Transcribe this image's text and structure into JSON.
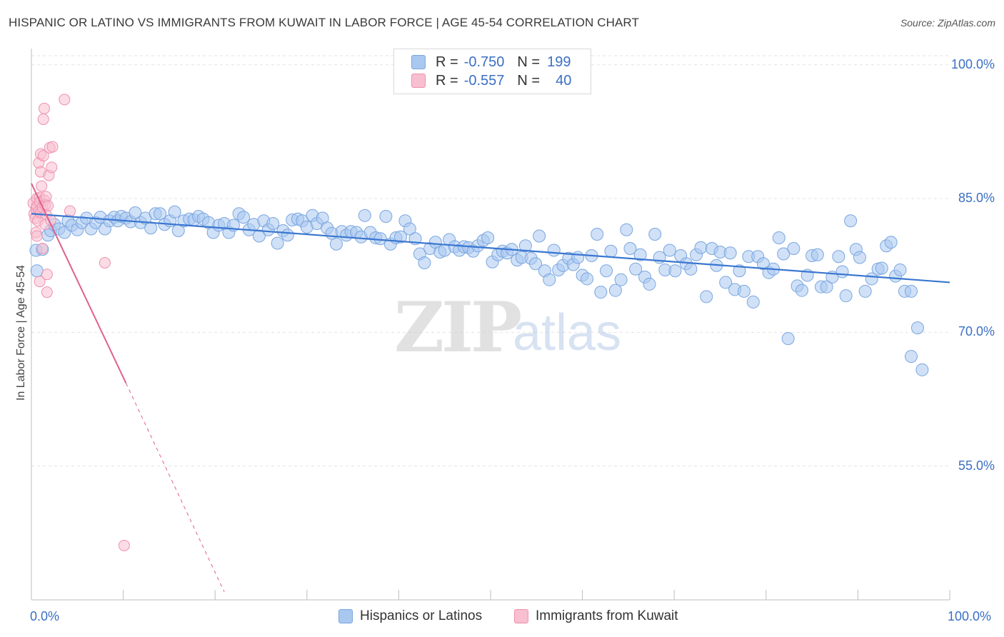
{
  "title": "HISPANIC OR LATINO VS IMMIGRANTS FROM KUWAIT IN LABOR FORCE | AGE 45-54 CORRELATION CHART",
  "source": "Source: ZipAtlas.com",
  "watermark": {
    "zip": "ZIP",
    "atlas": "atlas"
  },
  "legend_top": [
    {
      "r_label": "R =",
      "r_value": "-0.750",
      "n_label": "N =",
      "n_value": "199"
    },
    {
      "r_label": "R =",
      "r_value": "-0.557",
      "n_label": "N =",
      "n_value": "40"
    }
  ],
  "legend_bottom": [
    "Hispanics or Latinos",
    "Immigrants from Kuwait"
  ],
  "colors": {
    "blue_fill": "#a9c8f0",
    "blue_stroke": "#7aa6e0",
    "blue_line": "#3a76d0",
    "pink_fill": "#f7bfd0",
    "pink_stroke": "#ee90b0",
    "pink_line": "#e0608c",
    "grid": "#e3e3e3",
    "tick_text": "#3b6fc4"
  },
  "chart_data": {
    "type": "scatter",
    "title": "HISPANIC OR LATINO VS IMMIGRANTS FROM KUWAIT IN LABOR FORCE | AGE 45-54 CORRELATION CHART",
    "xlabel": "",
    "ylabel": "In Labor Force | Age 45-54",
    "xlim": [
      0,
      100
    ],
    "ylim": [
      40,
      101.5
    ],
    "x_tick_labels": [
      "0.0%",
      "100.0%"
    ],
    "y_ticks": [
      55,
      70,
      85,
      100
    ],
    "y_tick_labels": [
      "55.0%",
      "70.0%",
      "85.0%",
      "100.0%"
    ],
    "grid": true,
    "legend_position": "top-center",
    "series": [
      {
        "name": "Hispanics or Latinos",
        "r": -0.75,
        "n": 199,
        "trend": {
          "x": [
            0,
            100
          ],
          "y": [
            83.3,
            75.6
          ]
        },
        "points": [
          [
            0.5,
            79.2
          ],
          [
            0.6,
            76.9
          ],
          [
            1.2,
            79.3
          ],
          [
            1.8,
            80.9
          ],
          [
            2.1,
            81.4
          ],
          [
            2.5,
            82.1
          ],
          [
            3.0,
            81.6
          ],
          [
            3.6,
            81.2
          ],
          [
            4.0,
            82.5
          ],
          [
            4.4,
            82.0
          ],
          [
            5.0,
            81.5
          ],
          [
            5.5,
            82.3
          ],
          [
            6.0,
            82.8
          ],
          [
            6.5,
            81.6
          ],
          [
            7.0,
            82.3
          ],
          [
            7.5,
            82.9
          ],
          [
            8.0,
            81.6
          ],
          [
            8.5,
            82.5
          ],
          [
            9.0,
            82.9
          ],
          [
            9.4,
            82.5
          ],
          [
            9.8,
            83.0
          ],
          [
            10.3,
            82.8
          ],
          [
            10.8,
            82.4
          ],
          [
            11.3,
            83.4
          ],
          [
            11.9,
            82.3
          ],
          [
            12.4,
            82.8
          ],
          [
            13.0,
            81.7
          ],
          [
            13.5,
            83.3
          ],
          [
            14.0,
            83.3
          ],
          [
            14.5,
            82.1
          ],
          [
            15.1,
            82.5
          ],
          [
            15.6,
            83.5
          ],
          [
            16.0,
            81.4
          ],
          [
            16.6,
            82.5
          ],
          [
            17.2,
            82.7
          ],
          [
            17.7,
            82.6
          ],
          [
            18.2,
            83.0
          ],
          [
            18.7,
            82.7
          ],
          [
            19.3,
            82.3
          ],
          [
            19.8,
            81.2
          ],
          [
            20.4,
            82.0
          ],
          [
            21.0,
            82.2
          ],
          [
            21.5,
            81.2
          ],
          [
            22.0,
            82.0
          ],
          [
            22.6,
            83.3
          ],
          [
            23.1,
            82.9
          ],
          [
            23.7,
            81.5
          ],
          [
            24.2,
            82.1
          ],
          [
            24.8,
            80.8
          ],
          [
            25.3,
            82.5
          ],
          [
            25.8,
            81.5
          ],
          [
            26.3,
            82.2
          ],
          [
            26.8,
            80.0
          ],
          [
            27.4,
            81.4
          ],
          [
            27.9,
            80.9
          ],
          [
            28.4,
            82.6
          ],
          [
            29.0,
            82.7
          ],
          [
            29.5,
            82.5
          ],
          [
            30.0,
            81.8
          ],
          [
            30.6,
            83.1
          ],
          [
            31.1,
            82.2
          ],
          [
            31.7,
            82.8
          ],
          [
            32.2,
            81.7
          ],
          [
            32.7,
            81.1
          ],
          [
            33.2,
            79.9
          ],
          [
            33.8,
            81.3
          ],
          [
            34.3,
            80.9
          ],
          [
            34.8,
            81.3
          ],
          [
            35.4,
            81.2
          ],
          [
            35.9,
            80.7
          ],
          [
            36.3,
            83.1
          ],
          [
            36.9,
            81.2
          ],
          [
            37.5,
            80.6
          ],
          [
            38.0,
            80.5
          ],
          [
            38.6,
            83.0
          ],
          [
            39.1,
            79.9
          ],
          [
            39.7,
            80.6
          ],
          [
            40.2,
            80.7
          ],
          [
            40.7,
            82.5
          ],
          [
            41.2,
            81.6
          ],
          [
            41.8,
            80.5
          ],
          [
            42.3,
            78.8
          ],
          [
            42.8,
            77.8
          ],
          [
            43.4,
            79.4
          ],
          [
            44.0,
            80.1
          ],
          [
            44.5,
            79.0
          ],
          [
            45.0,
            79.2
          ],
          [
            45.5,
            80.4
          ],
          [
            46.1,
            79.6
          ],
          [
            46.6,
            79.2
          ],
          [
            47.1,
            79.6
          ],
          [
            47.6,
            79.5
          ],
          [
            48.1,
            79.1
          ],
          [
            48.6,
            79.7
          ],
          [
            49.2,
            80.3
          ],
          [
            49.7,
            80.6
          ],
          [
            50.2,
            77.9
          ],
          [
            50.8,
            78.7
          ],
          [
            51.3,
            79.1
          ],
          [
            51.8,
            78.9
          ],
          [
            52.3,
            79.3
          ],
          [
            52.9,
            78.1
          ],
          [
            53.4,
            78.4
          ],
          [
            53.8,
            79.7
          ],
          [
            54.4,
            78.3
          ],
          [
            54.9,
            77.7
          ],
          [
            55.3,
            80.8
          ],
          [
            55.9,
            76.9
          ],
          [
            56.4,
            75.9
          ],
          [
            56.9,
            79.2
          ],
          [
            57.4,
            77.0
          ],
          [
            57.9,
            77.5
          ],
          [
            58.5,
            78.3
          ],
          [
            59.0,
            77.6
          ],
          [
            59.5,
            78.4
          ],
          [
            60.0,
            76.4
          ],
          [
            60.5,
            76.0
          ],
          [
            61.0,
            78.6
          ],
          [
            61.6,
            81.0
          ],
          [
            62.0,
            74.5
          ],
          [
            62.6,
            76.9
          ],
          [
            63.1,
            79.1
          ],
          [
            63.6,
            74.7
          ],
          [
            64.2,
            75.9
          ],
          [
            64.8,
            81.5
          ],
          [
            65.2,
            79.4
          ],
          [
            65.8,
            77.1
          ],
          [
            66.3,
            78.7
          ],
          [
            66.8,
            76.2
          ],
          [
            67.3,
            75.4
          ],
          [
            67.9,
            81.0
          ],
          [
            68.4,
            78.4
          ],
          [
            69.0,
            77.0
          ],
          [
            69.5,
            79.2
          ],
          [
            70.1,
            76.9
          ],
          [
            70.7,
            78.6
          ],
          [
            71.3,
            77.7
          ],
          [
            71.8,
            77.1
          ],
          [
            72.4,
            78.7
          ],
          [
            72.9,
            79.5
          ],
          [
            73.5,
            74.0
          ],
          [
            74.1,
            79.4
          ],
          [
            74.6,
            77.5
          ],
          [
            75.0,
            79.0
          ],
          [
            75.6,
            75.6
          ],
          [
            76.1,
            78.9
          ],
          [
            76.6,
            74.8
          ],
          [
            77.1,
            76.9
          ],
          [
            77.6,
            74.6
          ],
          [
            78.1,
            78.5
          ],
          [
            78.6,
            73.4
          ],
          [
            79.1,
            78.5
          ],
          [
            79.7,
            77.7
          ],
          [
            80.3,
            76.7
          ],
          [
            80.8,
            77.1
          ],
          [
            81.4,
            80.6
          ],
          [
            81.9,
            78.8
          ],
          [
            82.4,
            69.3
          ],
          [
            83.0,
            79.4
          ],
          [
            83.4,
            75.2
          ],
          [
            83.9,
            74.7
          ],
          [
            84.5,
            76.4
          ],
          [
            85.0,
            78.6
          ],
          [
            85.6,
            78.7
          ],
          [
            86.0,
            75.1
          ],
          [
            86.6,
            75.1
          ],
          [
            87.2,
            76.2
          ],
          [
            87.9,
            78.5
          ],
          [
            88.3,
            76.8
          ],
          [
            88.7,
            74.1
          ],
          [
            89.2,
            82.5
          ],
          [
            89.8,
            79.3
          ],
          [
            90.2,
            78.4
          ],
          [
            90.8,
            74.6
          ],
          [
            91.5,
            76.0
          ],
          [
            92.2,
            77.1
          ],
          [
            92.6,
            77.2
          ],
          [
            93.1,
            79.7
          ],
          [
            93.6,
            80.1
          ],
          [
            94.1,
            76.3
          ],
          [
            94.6,
            77.0
          ],
          [
            95.1,
            74.6
          ],
          [
            95.8,
            74.6
          ],
          [
            96.5,
            70.5
          ],
          [
            97.0,
            65.8
          ],
          [
            95.8,
            67.3
          ]
        ]
      },
      {
        "name": "Immigrants from Kuwait",
        "r": -0.557,
        "n": 40,
        "trend_solid": {
          "x": [
            0,
            10.3
          ],
          "y": [
            86.7,
            64.3
          ]
        },
        "trend_dashed": {
          "x": [
            10.3,
            21.0
          ],
          "y": [
            64.3,
            40.9
          ]
        },
        "points": [
          [
            0.2,
            84.5
          ],
          [
            0.3,
            83.3
          ],
          [
            0.4,
            82.8
          ],
          [
            0.5,
            83.8
          ],
          [
            0.5,
            81.2
          ],
          [
            0.6,
            85.0
          ],
          [
            0.6,
            84.1
          ],
          [
            0.7,
            82.5
          ],
          [
            0.8,
            89.0
          ],
          [
            0.8,
            83.6
          ],
          [
            0.9,
            85.1
          ],
          [
            0.9,
            84.6
          ],
          [
            1.0,
            90.0
          ],
          [
            1.0,
            88.0
          ],
          [
            1.0,
            83.4
          ],
          [
            1.1,
            86.4
          ],
          [
            1.2,
            84.0
          ],
          [
            1.2,
            79.4
          ],
          [
            1.3,
            93.9
          ],
          [
            1.3,
            89.8
          ],
          [
            1.4,
            95.1
          ],
          [
            1.4,
            84.8
          ],
          [
            1.5,
            82.1
          ],
          [
            1.5,
            84.3
          ],
          [
            1.6,
            85.2
          ],
          [
            1.6,
            83.2
          ],
          [
            1.7,
            76.5
          ],
          [
            1.7,
            74.5
          ],
          [
            1.8,
            84.2
          ],
          [
            1.9,
            87.6
          ],
          [
            2.0,
            90.7
          ],
          [
            2.1,
            82.6
          ],
          [
            2.2,
            88.5
          ],
          [
            2.3,
            90.8
          ],
          [
            0.6,
            80.8
          ],
          [
            0.9,
            75.7
          ],
          [
            3.6,
            96.1
          ],
          [
            4.2,
            83.6
          ],
          [
            8.0,
            77.8
          ],
          [
            10.1,
            46.1
          ]
        ]
      }
    ]
  }
}
